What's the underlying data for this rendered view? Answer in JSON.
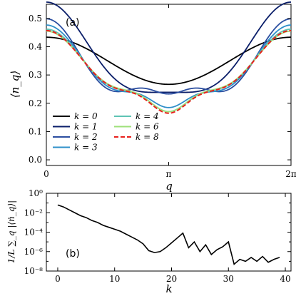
{
  "chart_data": [
    {
      "panel_label": "(a)",
      "type": "line",
      "ylabel": "⟨n_q⟩",
      "xlabel": "q",
      "xlim": [
        0,
        6.2832
      ],
      "ylim": [
        -0.02,
        0.55
      ],
      "xticks": [
        {
          "value": 0,
          "label": "0"
        },
        {
          "value": 3.1416,
          "label": "π"
        },
        {
          "value": 6.2832,
          "label": "2π"
        }
      ],
      "yticks": [
        {
          "value": 0.0,
          "label": "0.0"
        },
        {
          "value": 0.1,
          "label": "0.1"
        },
        {
          "value": 0.2,
          "label": "0.2"
        },
        {
          "value": 0.3,
          "label": "0.3"
        },
        {
          "value": 0.4,
          "label": "0.4"
        },
        {
          "value": 0.5,
          "label": "0.5"
        }
      ],
      "legend_location": "lower-left, two columns",
      "series": [
        {
          "name": "k = 0",
          "color": "#000000",
          "dashed": false,
          "params": {
            "c": 0.3502,
            "d": 0.0,
            "e": 0.0833,
            "f": 0.0,
            "gp": 0.0,
            "gw": 0.5
          }
        },
        {
          "name": "k = 1",
          "color": "#0b1f6a",
          "dashed": false,
          "params": {
            "c": 0.3556,
            "d": 0.0,
            "e": 0.1594,
            "f": -0.0427,
            "gp": 0.0,
            "gw": 0.5
          }
        },
        {
          "name": "k = 2",
          "color": "#2b4ea0",
          "dashed": false,
          "params": {
            "c": 0.3395,
            "d": 0.0,
            "e": 0.0716,
            "f": -0.0876,
            "gp": 0.1225,
            "gw": 0.5
          }
        },
        {
          "name": "k = 3",
          "color": "#2e8fc9",
          "dashed": false,
          "params": {
            "c": 0.3288,
            "d": 0.0,
            "e": 0.0796,
            "f": -0.0681,
            "gp": 0.1325,
            "gw": 0.5
          }
        },
        {
          "name": "k = 4",
          "color": "#5ec4b4",
          "dashed": false,
          "params": {
            "c": 0.3258,
            "d": 0.0,
            "e": 0.0782,
            "f": -0.058,
            "gp": 0.135,
            "gw": 0.5
          }
        },
        {
          "name": "k = 6",
          "color": "#9ee07a",
          "dashed": false,
          "params": {
            "c": 0.325,
            "d": 0.0,
            "e": 0.075,
            "f": -0.055,
            "gp": 0.135,
            "gw": 0.5
          }
        },
        {
          "name": "k = 8",
          "color": "#e8201c",
          "dashed": true,
          "params": {
            "c": 0.3237,
            "d": 0.0,
            "e": 0.0773,
            "f": -0.056,
            "gp": 0.1375,
            "gw": 0.5
          }
        }
      ]
    },
    {
      "panel_label": "(b)",
      "type": "line",
      "yscale": "log",
      "ylabel": "1/L ∑_q |⟨ṅ_q⟩|",
      "xlabel": "k",
      "xlim": [
        -2,
        41
      ],
      "ylim_exponent": [
        -8,
        0
      ],
      "xticks": [
        0,
        10,
        20,
        30,
        40
      ],
      "yticks": [
        {
          "exp": -8,
          "label": "10⁻⁸"
        },
        {
          "exp": -6,
          "label": "10⁻⁶"
        },
        {
          "exp": -4,
          "label": "10⁻⁴"
        },
        {
          "exp": -2,
          "label": "10⁻²"
        },
        {
          "exp": 0,
          "label": "10⁰"
        }
      ],
      "series": [
        {
          "name": "",
          "color": "#000000",
          "x": [
            0,
            1,
            2,
            3,
            4,
            5,
            6,
            7,
            8,
            9,
            10,
            11,
            12,
            13,
            14,
            15,
            16,
            17,
            18,
            19,
            20,
            21,
            22,
            23,
            24,
            25,
            26,
            27,
            28,
            29,
            30,
            31,
            32,
            33,
            34,
            35,
            36,
            37,
            38,
            39
          ],
          "log10_y": [
            -1.2,
            -1.4,
            -1.7,
            -2.0,
            -2.3,
            -2.5,
            -2.8,
            -3.0,
            -3.3,
            -3.5,
            -3.7,
            -3.9,
            -4.2,
            -4.5,
            -4.8,
            -5.2,
            -5.9,
            -6.1,
            -6.0,
            -5.6,
            -5.1,
            -4.6,
            -4.1,
            -5.6,
            -5.0,
            -6.0,
            -5.3,
            -6.3,
            -5.8,
            -5.5,
            -5.0,
            -7.3,
            -6.8,
            -7.0,
            -6.6,
            -7.0,
            -6.5,
            -7.1,
            -6.8,
            -6.6
          ]
        }
      ]
    }
  ]
}
